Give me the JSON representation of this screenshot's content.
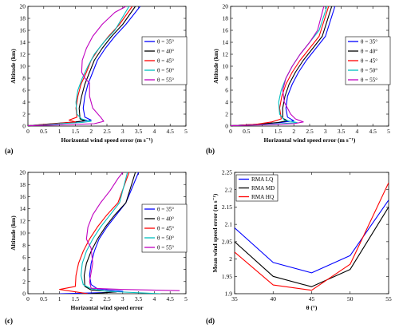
{
  "chart_data": [
    {
      "type": "line",
      "panel_label": "(a)",
      "xlabel": "Horizontal wind speed error (m s⁻¹)",
      "ylabel": "Altitude (km)",
      "xlim": [
        0,
        5
      ],
      "ylim": [
        0,
        20
      ],
      "xticks": [
        "0",
        "0.5",
        "1",
        "1.5",
        "2",
        "2.5",
        "3",
        "3.5",
        "4",
        "4.5",
        "5"
      ],
      "yticks": [
        "0",
        "2",
        "4",
        "6",
        "8",
        "10",
        "12",
        "14",
        "16",
        "18",
        "20"
      ],
      "legend": "right",
      "series": [
        {
          "name": "θ = 35°",
          "color": "#0000ff",
          "x": [
            0.0,
            0.5,
            1.0,
            1.4,
            1.7,
            2.0,
            1.8,
            1.75,
            1.8,
            1.9,
            2.05,
            2.2,
            2.45,
            2.75,
            3.1,
            3.55
          ],
          "y": [
            0.05,
            0.2,
            0.4,
            0.6,
            0.8,
            1.0,
            1.5,
            3,
            5,
            7,
            9,
            11,
            13,
            15,
            17,
            20
          ]
        },
        {
          "name": "θ = 40°",
          "color": "#000000",
          "x": [
            0.0,
            0.5,
            1.0,
            1.5,
            1.8,
            1.65,
            1.62,
            1.7,
            1.8,
            1.95,
            2.1,
            2.35,
            2.65,
            3.0,
            3.4
          ],
          "y": [
            0.05,
            0.3,
            0.5,
            0.7,
            0.9,
            1.2,
            3,
            5,
            7,
            9,
            11,
            13,
            15,
            17,
            20
          ]
        },
        {
          "name": "θ = 45°",
          "color": "#ff0000",
          "x": [
            0.0,
            0.5,
            1.0,
            1.5,
            1.3,
            1.55,
            1.52,
            1.58,
            1.68,
            1.85,
            2.0,
            2.25,
            2.55,
            2.9,
            3.3
          ],
          "y": [
            0.05,
            0.25,
            0.45,
            0.7,
            1.0,
            1.5,
            3,
            5,
            7,
            9,
            11,
            13,
            15,
            17,
            20
          ]
        },
        {
          "name": "θ = 50°",
          "color": "#00c0c0",
          "x": [
            0.0,
            0.5,
            1.0,
            1.7,
            2.0,
            1.7,
            1.55,
            1.52,
            1.58,
            1.72,
            1.9,
            2.1,
            2.4,
            2.75,
            3.2
          ],
          "y": [
            0.05,
            0.2,
            0.4,
            0.6,
            0.8,
            1.2,
            2,
            4,
            6,
            8,
            10,
            12,
            14,
            16,
            20
          ]
        },
        {
          "name": "θ = 55°",
          "color": "#c000c0",
          "x": [
            0.0,
            1.0,
            2.1,
            2.4,
            2.3,
            2.05,
            1.95,
            1.95,
            1.8,
            1.7,
            1.72,
            1.85,
            2.05,
            2.35,
            2.75,
            3.1
          ],
          "y": [
            0.05,
            0.2,
            0.4,
            0.8,
            1.5,
            3,
            5,
            7.2,
            8,
            9,
            11,
            13,
            15,
            17,
            19,
            20
          ]
        }
      ]
    },
    {
      "type": "line",
      "panel_label": "(b)",
      "xlabel": "Horizontal wind speed error (m s⁻¹)",
      "ylabel": "Altitude (km)",
      "xlim": [
        0,
        5
      ],
      "ylim": [
        0,
        20
      ],
      "xticks": [
        "0",
        "0.5",
        "1",
        "1.5",
        "2",
        "2.5",
        "3",
        "3.5",
        "4",
        "4.5",
        "5"
      ],
      "yticks": [
        "0",
        "2",
        "4",
        "6",
        "8",
        "10",
        "12",
        "14",
        "16",
        "18",
        "20"
      ],
      "legend": "right",
      "series": [
        {
          "name": "θ = 35°",
          "color": "#0000ff",
          "x": [
            0.0,
            0.8,
            1.6,
            2.0,
            1.8,
            1.75,
            1.8,
            1.95,
            2.15,
            2.4,
            2.7,
            3.0,
            3.3
          ],
          "y": [
            0.05,
            0.3,
            0.6,
            0.9,
            1.5,
            3,
            5,
            7,
            9,
            11,
            13,
            15,
            20
          ]
        },
        {
          "name": "θ = 40°",
          "color": "#000000",
          "x": [
            0.0,
            0.8,
            1.5,
            1.8,
            1.65,
            1.65,
            1.72,
            1.85,
            2.05,
            2.3,
            2.6,
            2.9,
            3.2
          ],
          "y": [
            0.05,
            0.3,
            0.6,
            0.9,
            1.3,
            3,
            5,
            7,
            9,
            11,
            13,
            15,
            20
          ]
        },
        {
          "name": "θ = 45°",
          "color": "#ff0000",
          "x": [
            0.0,
            0.8,
            1.3,
            1.6,
            1.55,
            1.62,
            1.75,
            1.95,
            2.2,
            2.5,
            2.8,
            3.1
          ],
          "y": [
            0.05,
            0.3,
            0.7,
            1.2,
            3,
            5,
            7,
            9,
            11,
            13,
            15,
            20
          ]
        },
        {
          "name": "θ = 50°",
          "color": "#00c0c0",
          "x": [
            0.0,
            0.8,
            1.6,
            2.1,
            1.7,
            1.55,
            1.52,
            1.6,
            1.75,
            1.95,
            2.2,
            2.5,
            2.8,
            3.05
          ],
          "y": [
            0.05,
            0.2,
            0.4,
            0.6,
            1.0,
            2,
            4,
            6,
            8,
            10,
            12,
            14,
            16,
            20
          ]
        },
        {
          "name": "θ = 55°",
          "color": "#c000c0",
          "x": [
            0.0,
            1.0,
            2.0,
            2.3,
            2.05,
            1.9,
            1.7,
            1.65,
            1.75,
            1.95,
            2.2,
            2.5,
            2.75,
            2.95
          ],
          "y": [
            0.05,
            0.2,
            0.4,
            0.7,
            1.2,
            2,
            4,
            6,
            8,
            10,
            12,
            14,
            16,
            20
          ]
        }
      ]
    },
    {
      "type": "line",
      "panel_label": "(c)",
      "xlabel": "Horizontal wind speed error",
      "ylabel": "Altitude (km)",
      "xlim": [
        0,
        5
      ],
      "ylim": [
        0,
        20
      ],
      "xticks": [
        "0",
        "0.5",
        "1",
        "1.5",
        "2",
        "2.5",
        "3",
        "3.5",
        "4",
        "4.5",
        "5"
      ],
      "yticks": [
        "0",
        "2",
        "4",
        "6",
        "8",
        "10",
        "12",
        "14",
        "16",
        "18",
        "20"
      ],
      "legend": "right",
      "series": [
        {
          "name": "θ = 35°",
          "color": "#0000ff",
          "x": [
            1.0,
            2.5,
            3.0,
            2.2,
            2.0,
            1.95,
            2.0,
            2.1,
            2.25,
            2.5,
            2.8,
            3.1,
            3.5
          ],
          "y": [
            0.0,
            0.2,
            0.4,
            0.8,
            1.5,
            3,
            5,
            7,
            9,
            11,
            13,
            15,
            20
          ]
        },
        {
          "name": "θ = 40°",
          "color": "#000000",
          "x": [
            2.0,
            2.8,
            2.0,
            1.8,
            1.78,
            1.85,
            2.0,
            2.2,
            2.45,
            2.75,
            3.1,
            3.4
          ],
          "y": [
            0.0,
            0.3,
            0.6,
            1.2,
            3,
            5,
            7,
            9,
            11,
            13,
            15,
            20
          ]
        },
        {
          "name": "θ = 45°",
          "color": "#ff0000",
          "x": [
            1.9,
            1.0,
            1.5,
            1.52,
            1.6,
            1.75,
            1.95,
            2.2,
            2.5,
            2.85,
            3.2
          ],
          "y": [
            0.0,
            0.7,
            1.2,
            3,
            5,
            7,
            9,
            11,
            13,
            15,
            20
          ]
        },
        {
          "name": "θ = 50°",
          "color": "#00c0c0",
          "x": [
            4.2,
            2.5,
            2.0,
            1.75,
            1.68,
            1.72,
            1.85,
            2.05,
            2.3,
            2.6,
            2.9,
            3.15
          ],
          "y": [
            0.0,
            0.4,
            0.8,
            1.5,
            3,
            5,
            7,
            9,
            11,
            13,
            15,
            20
          ]
        },
        {
          "name": "θ = 55°",
          "color": "#c000c0",
          "x": [
            4.8,
            3.0,
            2.0,
            1.95,
            2.05,
            2.0,
            1.85,
            1.9,
            2.05,
            2.3,
            2.6,
            2.85,
            3.0
          ],
          "y": [
            0.5,
            0.7,
            0.9,
            2,
            5,
            7.5,
            9,
            11,
            13,
            15,
            17,
            19,
            20
          ]
        }
      ]
    },
    {
      "type": "line",
      "panel_label": "(d)",
      "xlabel": "θ (°)",
      "ylabel": "Mean wind speed error (m s⁻¹)",
      "xlim": [
        35,
        55
      ],
      "ylim": [
        1.9,
        2.25
      ],
      "xticks": [
        "35",
        "40",
        "45",
        "50",
        "55"
      ],
      "yticks": [
        "1.9",
        "1.95",
        "2",
        "2.05",
        "2.1",
        "2.15",
        "2.2",
        "2.25"
      ],
      "legend": "top-left",
      "categories": [
        35,
        40,
        45,
        50,
        55
      ],
      "series": [
        {
          "name": "RMA LQ",
          "color": "#0000ff",
          "values": [
            2.09,
            1.99,
            1.96,
            2.01,
            2.17
          ]
        },
        {
          "name": "RMA MD",
          "color": "#000000",
          "values": [
            2.05,
            1.95,
            1.92,
            1.97,
            2.15
          ]
        },
        {
          "name": "RMA HQ",
          "color": "#ff0000",
          "values": [
            2.02,
            1.925,
            1.91,
            1.985,
            2.22
          ]
        }
      ]
    }
  ]
}
